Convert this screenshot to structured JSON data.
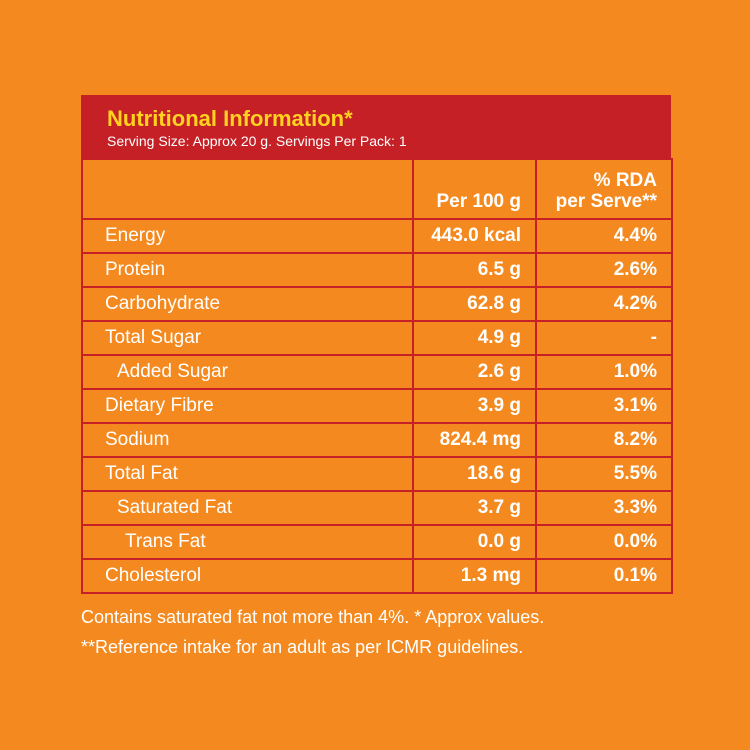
{
  "header": {
    "title": "Nutritional Information*",
    "subtitle": "Serving Size: Approx 20 g. Servings Per Pack: 1"
  },
  "columns": {
    "per100": "Per 100 g",
    "rda_line1": "% RDA",
    "rda_line2": "per Serve**"
  },
  "rows": [
    {
      "name": "Energy",
      "per100": "443.0 kcal",
      "rda": "4.4%"
    },
    {
      "name": "Protein",
      "per100": "6.5 g",
      "rda": "2.6%"
    },
    {
      "name": "Carbohydrate",
      "per100": "62.8 g",
      "rda": "4.2%"
    },
    {
      "name": "Total Sugar",
      "per100": "4.9 g",
      "rda": "-"
    },
    {
      "name": "Added Sugar",
      "per100": "2.6 g",
      "rda": "1.0%"
    },
    {
      "name": "Dietary Fibre",
      "per100": "3.9 g",
      "rda": "3.1%"
    },
    {
      "name": "Sodium",
      "per100": "824.4 mg",
      "rda": "8.2%"
    },
    {
      "name": "Total Fat",
      "per100": "18.6 g",
      "rda": "5.5%"
    },
    {
      "name": "Saturated Fat",
      "per100": "3.7 g",
      "rda": "3.3%"
    },
    {
      "name": "Trans Fat",
      "per100": "0.0 g",
      "rda": "0.0%"
    },
    {
      "name": "Cholesterol",
      "per100": "1.3 mg",
      "rda": "0.1%"
    }
  ],
  "notes": {
    "line1": "Contains saturated fat not more than 4%. * Approx values.",
    "line2": "**Reference intake for an adult as per ICMR guidelines."
  },
  "colors": {
    "background": "#f48a1f",
    "header_bg": "#c42026",
    "title": "#ffd21f",
    "text": "#ffffff"
  }
}
